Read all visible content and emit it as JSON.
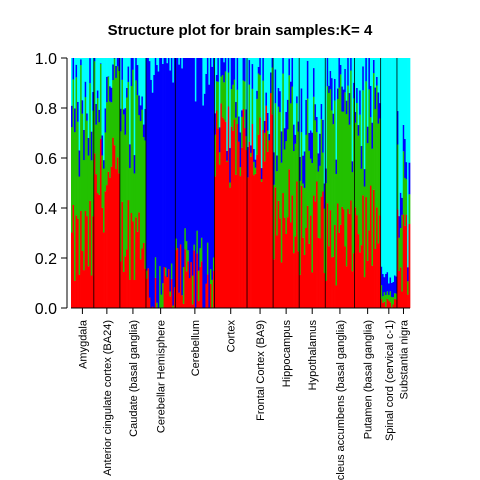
{
  "chart_data": {
    "type": "bar",
    "title": "Structure plot for brain samples:K= 4",
    "xlabel": "",
    "ylabel": "",
    "ylim": [
      0,
      1
    ],
    "yticks": [
      "0.0",
      "0.2",
      "0.4",
      "0.6",
      "0.8",
      "1.0"
    ],
    "stacked": true,
    "series_colors": {
      "red": "#ff0000",
      "green": "#22c100",
      "blue": "#0000ff",
      "cyan": "#00ffff"
    },
    "tissues": [
      {
        "label": "Amygdala",
        "weight": 7,
        "red": 0.24,
        "green": 0.48,
        "blue": 0.07
      },
      {
        "label": "Anterior cingulate cortex (BA24)",
        "weight": 8,
        "red": 0.5,
        "green": 0.32,
        "blue": 0.06
      },
      {
        "label": "Caudate (basal ganglia)",
        "weight": 8,
        "red": 0.31,
        "green": 0.5,
        "blue": 0.07
      },
      {
        "label": "Cerebellar Hemisphere",
        "weight": 9,
        "red": 0.05,
        "green": 0.03,
        "blue": 0.9
      },
      {
        "label": "Cerebellum",
        "weight": 12,
        "red": 0.1,
        "green": 0.02,
        "blue": 0.86
      },
      {
        "label": "Cortex",
        "weight": 10,
        "red": 0.68,
        "green": 0.14,
        "blue": 0.08
      },
      {
        "label": "Frontal Cortex (BA9)",
        "weight": 8,
        "red": 0.7,
        "green": 0.12,
        "blue": 0.08
      },
      {
        "label": "Hippocampus",
        "weight": 8,
        "red": 0.37,
        "green": 0.38,
        "blue": 0.08
      },
      {
        "label": "Hypothalamus",
        "weight": 8,
        "red": 0.33,
        "green": 0.3,
        "blue": 0.12
      },
      {
        "label": "Nucleus accumbens (basal ganglia)",
        "weight": 9,
        "red": 0.28,
        "green": 0.5,
        "blue": 0.08
      },
      {
        "label": "Putamen (basal ganglia)",
        "weight": 8,
        "red": 0.32,
        "green": 0.42,
        "blue": 0.07
      },
      {
        "label": "Spinal cord (cervical c-1)",
        "weight": 5,
        "red": 0.02,
        "green": 0.04,
        "blue": 0.06
      },
      {
        "label": "Substantia nigra",
        "weight": 4,
        "red": 0.22,
        "green": 0.18,
        "blue": 0.1
      }
    ]
  }
}
